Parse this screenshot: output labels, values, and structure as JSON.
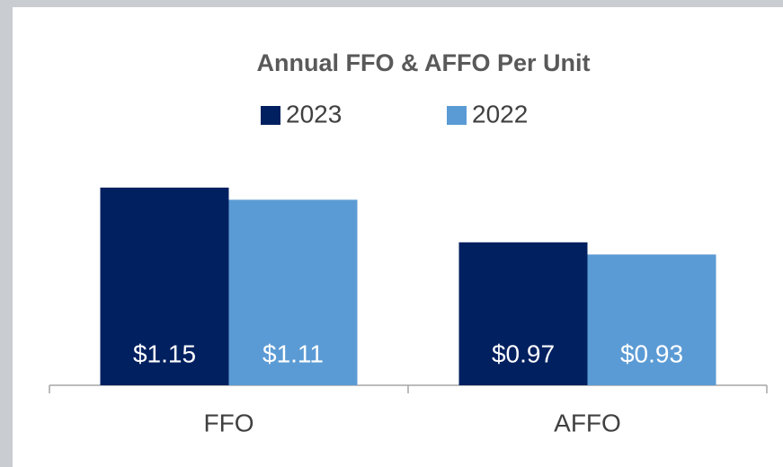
{
  "chart_data": {
    "type": "bar",
    "title": "Annual FFO & AFFO Per Unit",
    "categories": [
      "FFO",
      "AFFO"
    ],
    "series": [
      {
        "name": "2023",
        "color": "#002060",
        "values": [
          1.15,
          0.97
        ],
        "value_labels": [
          "$1.15",
          "$0.97"
        ]
      },
      {
        "name": "2022",
        "color": "#5b9bd5",
        "values": [
          1.11,
          0.93
        ],
        "value_labels": [
          "$1.11",
          "$0.93"
        ]
      }
    ],
    "ylim": [
      0.5,
      1.25
    ]
  }
}
